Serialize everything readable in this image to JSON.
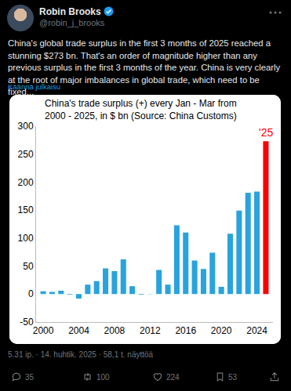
{
  "tweet": {
    "name": "Robin Brooks",
    "handle": "@robin_j_brooks",
    "text": "China's global trade surplus in the first 3 months of 2025 reached a stunning $273 bn. That's an order of magnitude higher than any previous surplus in the first 3 months of the year. China is very clearly at the root of major imbalances in global trade, which need to be fixed...",
    "translate": "Käännä julkaisu",
    "timestamp": "5.31 ip. · 14. huhtik. 2025 · 58,1 t. näyttöä",
    "replies": 35,
    "reposts": 100,
    "likes": 224,
    "bookmarks": 53
  },
  "chart_data": {
    "type": "bar",
    "title": "China's trade surplus (+) every Jan - Mar from 2000 - 2025, in $ bn (Source: China Customs)",
    "x": [
      2000,
      2001,
      2002,
      2003,
      2004,
      2005,
      2006,
      2007,
      2008,
      2009,
      2010,
      2011,
      2012,
      2013,
      2014,
      2015,
      2016,
      2017,
      2018,
      2019,
      2020,
      2021,
      2022,
      2023,
      2024,
      2025
    ],
    "values": [
      5,
      4,
      6,
      -1,
      -8,
      17,
      23,
      46,
      41,
      62,
      14,
      -1,
      0.5,
      43,
      17,
      123,
      110,
      60,
      45,
      74,
      13,
      108,
      149,
      181,
      183,
      273
    ],
    "colors": [
      "#29a3dd",
      "#29a3dd",
      "#29a3dd",
      "#29a3dd",
      "#29a3dd",
      "#29a3dd",
      "#29a3dd",
      "#29a3dd",
      "#29a3dd",
      "#29a3dd",
      "#29a3dd",
      "#29a3dd",
      "#29a3dd",
      "#29a3dd",
      "#29a3dd",
      "#29a3dd",
      "#29a3dd",
      "#29a3dd",
      "#29a3dd",
      "#29a3dd",
      "#29a3dd",
      "#29a3dd",
      "#29a3dd",
      "#29a3dd",
      "#29a3dd",
      "#ff0000"
    ],
    "xlim": [
      1999.2,
      2025.8
    ],
    "xticks": [
      2000,
      2004,
      2008,
      2012,
      2016,
      2020,
      2024
    ],
    "ylim": [
      -50,
      300
    ],
    "yticks": [
      -50,
      0,
      50,
      100,
      150,
      200,
      250,
      300
    ],
    "grid": false,
    "annotations": [
      {
        "text": "'25",
        "x": 2025
      }
    ]
  }
}
